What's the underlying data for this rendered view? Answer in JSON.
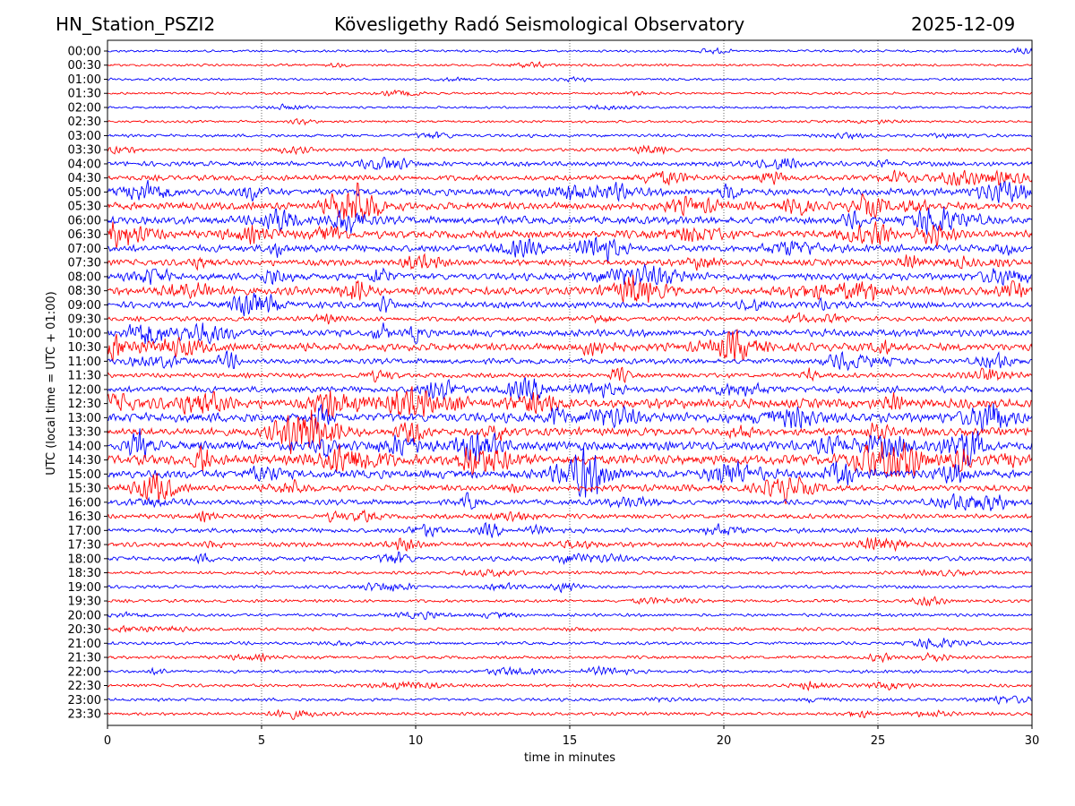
{
  "header": {
    "station": "HN_Station_PSZI2",
    "observatory": "Kövesligethy Radó Seismological Observatory",
    "date": "2025-12-09"
  },
  "chart_data": {
    "type": "line",
    "title": "Kövesligethy Radó Seismological Observatory",
    "xlabel": "time in minutes",
    "ylabel": "UTC (local time = UTC + 01:00)",
    "xlim": [
      0,
      30
    ],
    "xticks": [
      "0",
      "5",
      "10",
      "15",
      "20",
      "25",
      "30"
    ],
    "grid": "vertical dotted",
    "colors": [
      "#0000ff",
      "#ff0000"
    ],
    "rows": [
      "00:00",
      "00:30",
      "01:00",
      "01:30",
      "02:00",
      "02:30",
      "03:00",
      "03:30",
      "04:00",
      "04:30",
      "05:00",
      "05:30",
      "06:00",
      "06:30",
      "07:00",
      "07:30",
      "08:00",
      "08:30",
      "09:00",
      "09:30",
      "10:00",
      "10:30",
      "11:00",
      "11:30",
      "12:00",
      "12:30",
      "13:00",
      "13:30",
      "14:00",
      "14:30",
      "15:00",
      "15:30",
      "16:00",
      "16:30",
      "17:00",
      "17:30",
      "18:00",
      "18:30",
      "19:00",
      "19:30",
      "20:00",
      "20:30",
      "21:00",
      "21:30",
      "22:00",
      "22:30",
      "23:00",
      "23:30"
    ],
    "noise_level": [
      1.5,
      1.5,
      1.5,
      1.5,
      1.5,
      1.5,
      2,
      2,
      3,
      3.5,
      4.5,
      5,
      5,
      5,
      4.5,
      4,
      4.5,
      5,
      4,
      3,
      4.5,
      5,
      3.5,
      3,
      4,
      6,
      6,
      5,
      6,
      6.5,
      5.5,
      4,
      3.5,
      3,
      3,
      3,
      3,
      2,
      2,
      2,
      2,
      2,
      2,
      2,
      2,
      2,
      2,
      2
    ]
  }
}
